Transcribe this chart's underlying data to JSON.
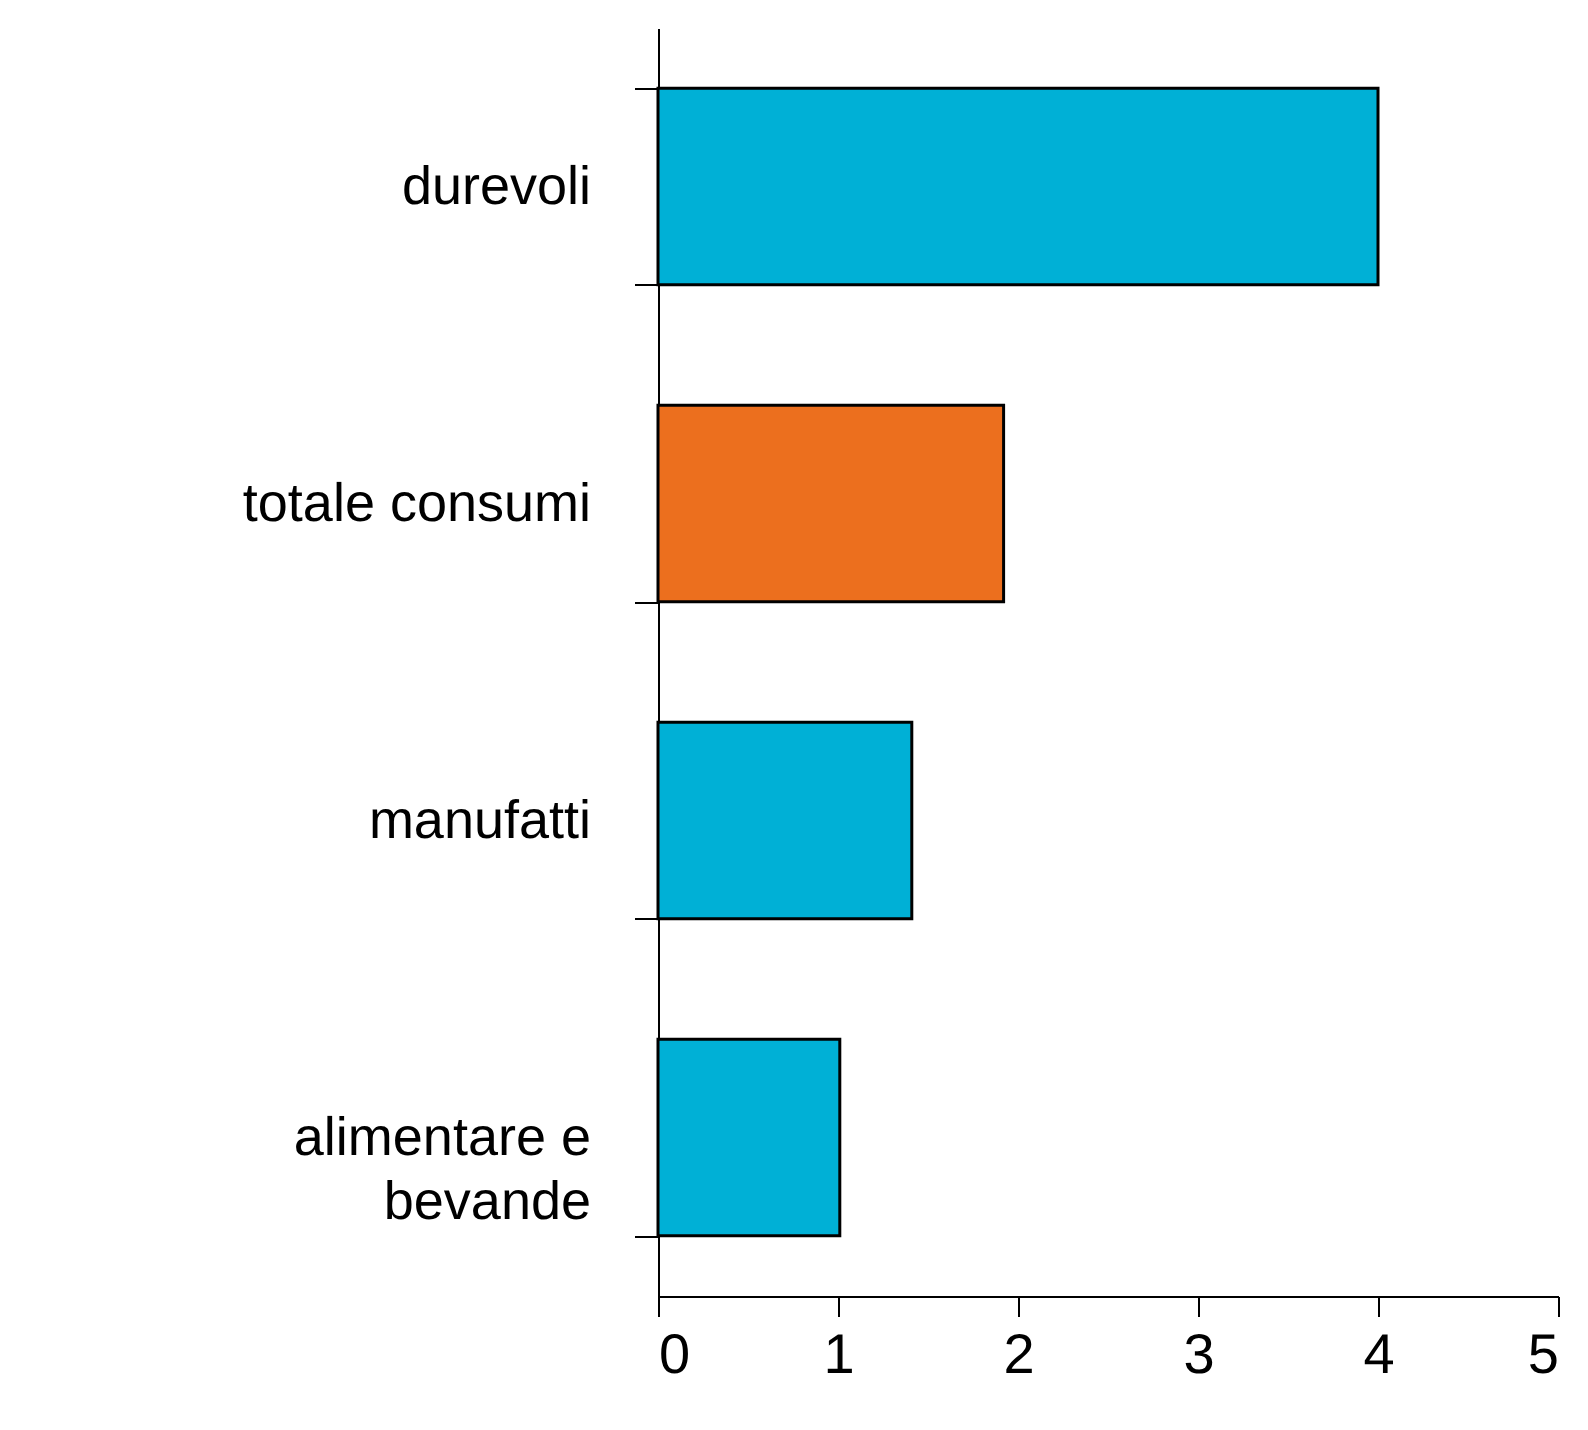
{
  "chart_data": {
    "type": "bar",
    "orientation": "horizontal",
    "categories": [
      "durevoli",
      "totale consumi",
      "manufatti",
      "alimentare e bevande"
    ],
    "values": [
      4.0,
      1.92,
      1.41,
      1.01
    ],
    "colors": [
      "#00b0d6",
      "#ec6f1e",
      "#00b0d6",
      "#00b0d6"
    ],
    "xlim": [
      0,
      5
    ],
    "xticks": [
      0,
      1,
      2,
      3,
      4,
      5
    ],
    "grid": false
  }
}
